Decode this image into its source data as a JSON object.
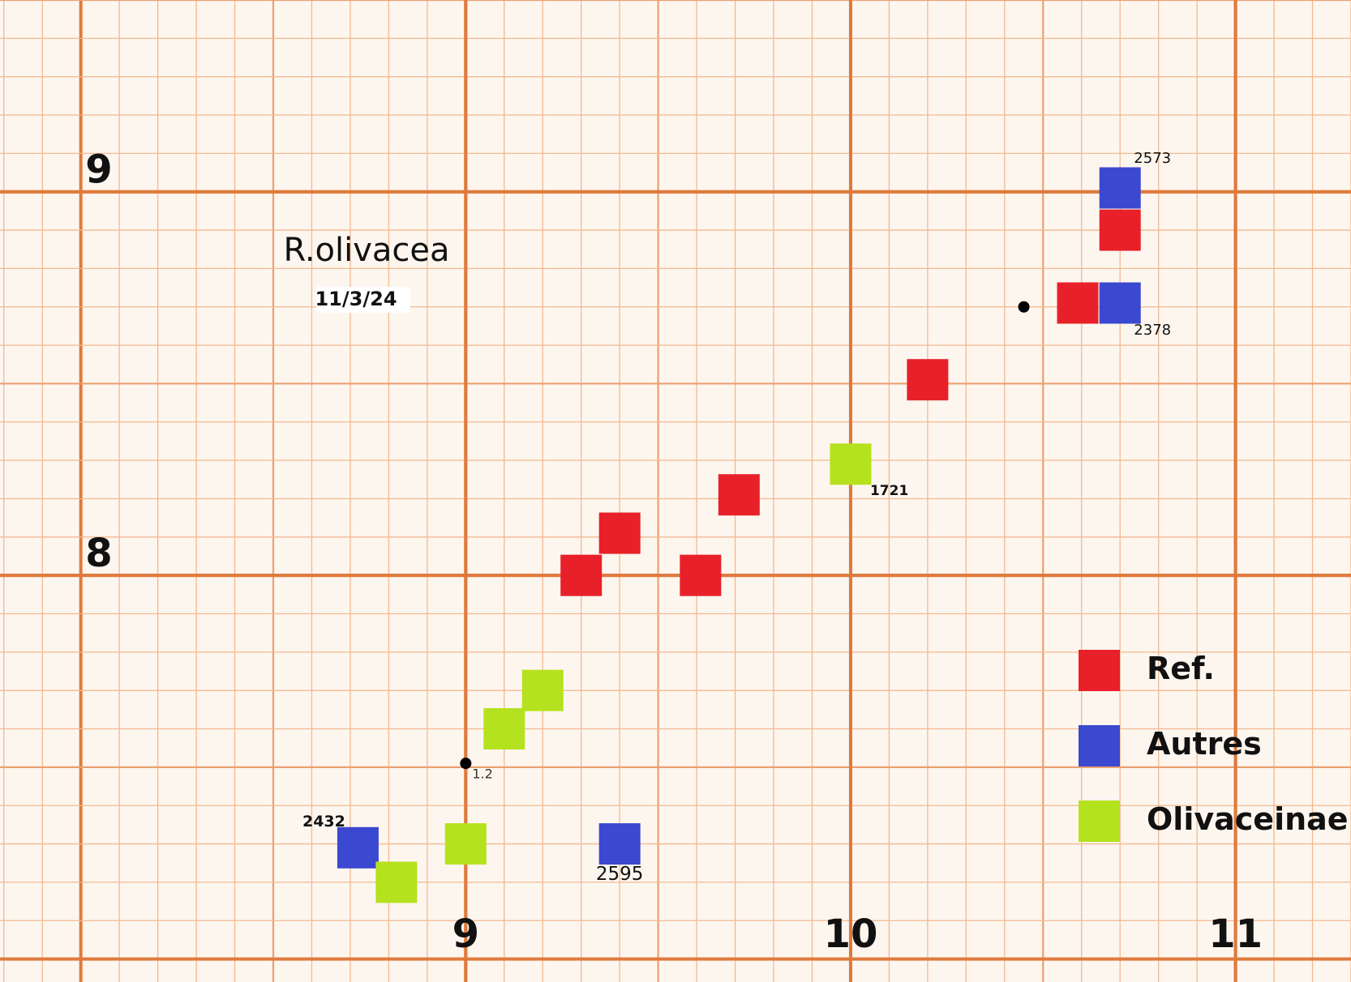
{
  "chart_data": {
    "type": "scatter",
    "title": "R.olivacea",
    "subtitle": "11/3/24",
    "xlim": [
      7.79,
      11.3
    ],
    "ylim": [
      6.94,
      9.5
    ],
    "xticks": [
      9,
      10,
      11
    ],
    "yticks": [
      8,
      9
    ],
    "grid": true,
    "legend": "lower right",
    "series": [
      {
        "name": "Ref.",
        "color": "#e8202a",
        "x": [
          10.7,
          10.59,
          10.2,
          9.71,
          9.4,
          9.3,
          9.61
        ],
        "values": [
          8.9,
          8.71,
          8.51,
          8.21,
          8.11,
          8.0,
          8.0
        ]
      },
      {
        "name": "Autres",
        "color": "#3b48d0",
        "x": [
          10.7,
          10.7,
          8.72,
          9.4
        ],
        "values": [
          9.01,
          8.71,
          7.29,
          7.3
        ],
        "labels": [
          "2573",
          "2378",
          "2432",
          "2595"
        ]
      },
      {
        "name": "Olivaceinae",
        "color": "#b5e21e",
        "x": [
          10.0,
          9.2,
          9.1,
          9.0,
          8.82
        ],
        "values": [
          8.29,
          7.7,
          7.6,
          7.3,
          7.2
        ],
        "labels": [
          "1721",
          null,
          null,
          null,
          null
        ]
      }
    ],
    "markers": {
      "color": "#000000",
      "x": [
        10.45,
        9.0
      ],
      "values": [
        8.7,
        7.51
      ],
      "labels": [
        null,
        "1.2"
      ]
    }
  }
}
